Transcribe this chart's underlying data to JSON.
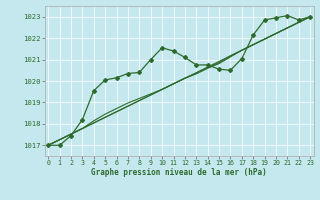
{
  "xlabel": "Graphe pression niveau de la mer (hPa)",
  "ylim": [
    1016.5,
    1023.5
  ],
  "xlim": [
    -0.3,
    23.3
  ],
  "yticks": [
    1017,
    1018,
    1019,
    1020,
    1021,
    1022,
    1023
  ],
  "xticks": [
    0,
    1,
    2,
    3,
    4,
    5,
    6,
    7,
    8,
    9,
    10,
    11,
    12,
    13,
    14,
    15,
    16,
    17,
    18,
    19,
    20,
    21,
    22,
    23
  ],
  "bg_color": "#c5e8ef",
  "grid_color": "#ffffff",
  "line_color": "#2d6b2d",
  "s_marked": [
    1017.0,
    1017.0,
    1017.45,
    1018.2,
    1019.55,
    1020.05,
    1020.15,
    1020.35,
    1020.4,
    1021.0,
    1021.55,
    1021.4,
    1021.1,
    1020.75,
    1020.75,
    1020.55,
    1020.5,
    1021.05,
    1022.15,
    1022.85,
    1022.95,
    1023.05,
    1022.85,
    1023.0
  ]
}
